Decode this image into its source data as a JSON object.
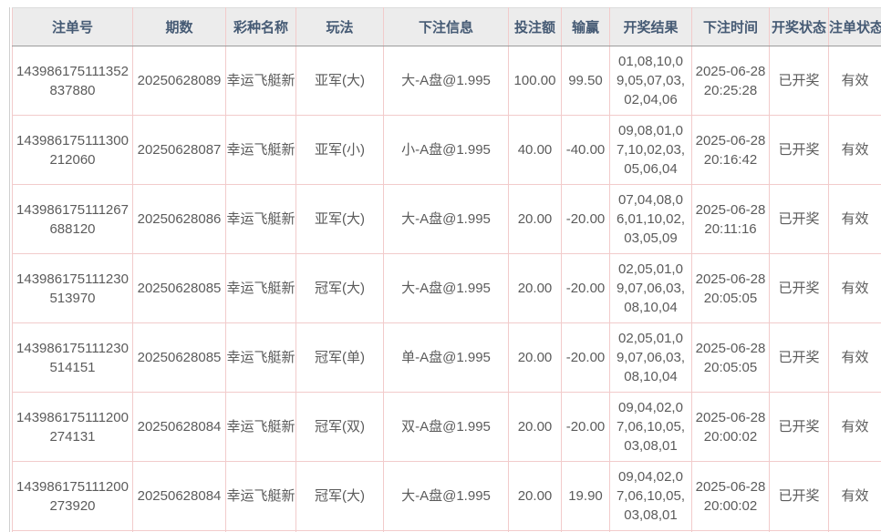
{
  "colors": {
    "header_bg": "#ececec",
    "header_text": "#455a74",
    "body_text": "#5b5b5b",
    "cell_border": "#f2cbcb",
    "header_bottom_border": "#9b9b9b",
    "panel_line": "#cfcfcf"
  },
  "table": {
    "columns": [
      {
        "key": "order_id",
        "label": "注单号"
      },
      {
        "key": "period",
        "label": "期数"
      },
      {
        "key": "lottery",
        "label": "彩种名称"
      },
      {
        "key": "play",
        "label": "玩法"
      },
      {
        "key": "bet_info",
        "label": "下注信息"
      },
      {
        "key": "amount",
        "label": "投注额"
      },
      {
        "key": "win_loss",
        "label": "输赢"
      },
      {
        "key": "result",
        "label": "开奖结果"
      },
      {
        "key": "bet_time",
        "label": "下注时间"
      },
      {
        "key": "draw_status",
        "label": "开奖状态"
      },
      {
        "key": "order_status",
        "label": "注单状态"
      }
    ],
    "rows": [
      {
        "order_id": "143986175111352837880",
        "period": "20250628089",
        "lottery": "幸运飞艇新",
        "play": "亚军(大)",
        "bet_info": "大-A盘@1.995",
        "amount": "100.00",
        "win_loss": "99.50",
        "result": "01,08,10,09,05,07,03,02,04,06",
        "bet_time": "2025-06-28 20:25:28",
        "draw_status": "已开奖",
        "order_status": "有效"
      },
      {
        "order_id": "143986175111300212060",
        "period": "20250628087",
        "lottery": "幸运飞艇新",
        "play": "亚军(小)",
        "bet_info": "小-A盘@1.995",
        "amount": "40.00",
        "win_loss": "-40.00",
        "result": "09,08,01,07,10,02,03,05,06,04",
        "bet_time": "2025-06-28 20:16:42",
        "draw_status": "已开奖",
        "order_status": "有效"
      },
      {
        "order_id": "143986175111267688120",
        "period": "20250628086",
        "lottery": "幸运飞艇新",
        "play": "亚军(大)",
        "bet_info": "大-A盘@1.995",
        "amount": "20.00",
        "win_loss": "-20.00",
        "result": "07,04,08,06,01,10,02,03,05,09",
        "bet_time": "2025-06-28 20:11:16",
        "draw_status": "已开奖",
        "order_status": "有效"
      },
      {
        "order_id": "143986175111230513970",
        "period": "20250628085",
        "lottery": "幸运飞艇新",
        "play": "冠军(大)",
        "bet_info": "大-A盘@1.995",
        "amount": "20.00",
        "win_loss": "-20.00",
        "result": "02,05,01,09,07,06,03,08,10,04",
        "bet_time": "2025-06-28 20:05:05",
        "draw_status": "已开奖",
        "order_status": "有效"
      },
      {
        "order_id": "143986175111230514151",
        "period": "20250628085",
        "lottery": "幸运飞艇新",
        "play": "冠军(单)",
        "bet_info": "单-A盘@1.995",
        "amount": "20.00",
        "win_loss": "-20.00",
        "result": "02,05,01,09,07,06,03,08,10,04",
        "bet_time": "2025-06-28 20:05:05",
        "draw_status": "已开奖",
        "order_status": "有效"
      },
      {
        "order_id": "143986175111200274131",
        "period": "20250628084",
        "lottery": "幸运飞艇新",
        "play": "冠军(双)",
        "bet_info": "双-A盘@1.995",
        "amount": "20.00",
        "win_loss": "-20.00",
        "result": "09,04,02,07,06,10,05,03,08,01",
        "bet_time": "2025-06-28 20:00:02",
        "draw_status": "已开奖",
        "order_status": "有效"
      },
      {
        "order_id": "143986175111200273920",
        "period": "20250628084",
        "lottery": "幸运飞艇新",
        "play": "冠军(大)",
        "bet_info": "大-A盘@1.995",
        "amount": "20.00",
        "win_loss": "19.90",
        "result": "09,04,02,07,06,10,05,03,08,01",
        "bet_time": "2025-06-28 20:00:02",
        "draw_status": "已开奖",
        "order_status": "有效"
      },
      {
        "order_id": "",
        "period": "",
        "lottery": "",
        "play": "",
        "bet_info": "",
        "amount": "",
        "win_loss": "",
        "result": "",
        "bet_time": "",
        "draw_status": "",
        "order_status": ""
      }
    ]
  }
}
